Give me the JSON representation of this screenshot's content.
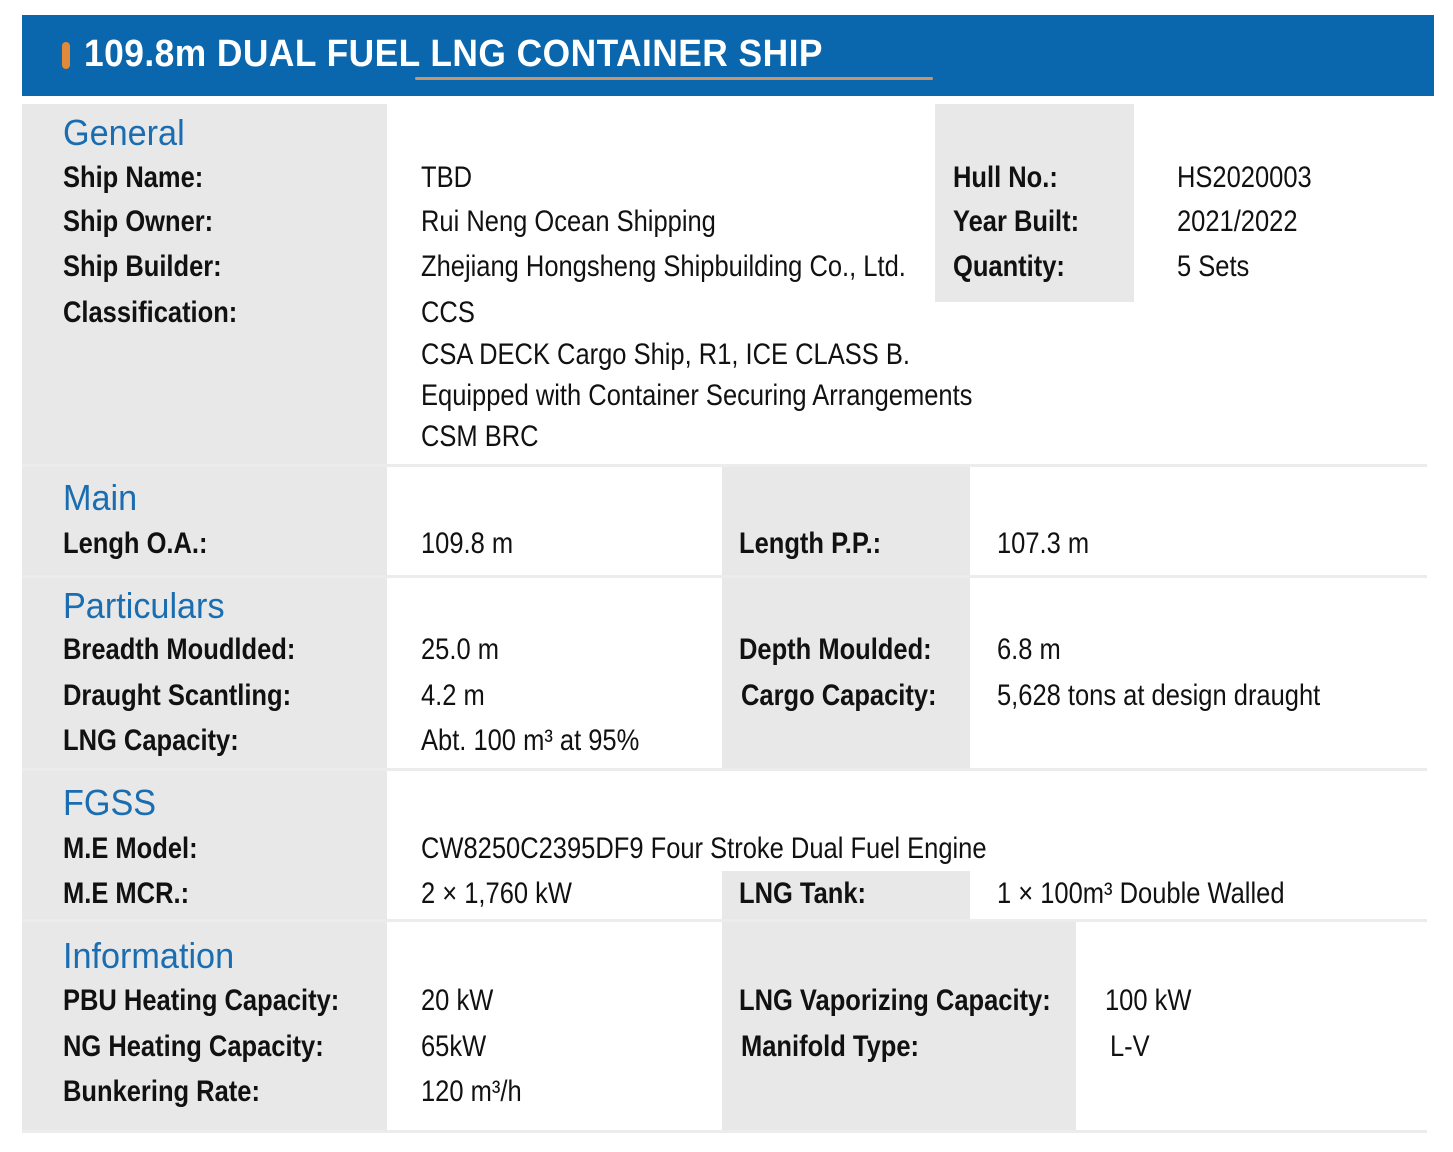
{
  "title": "109.8m DUAL FUEL LNG CONTAINER SHIP",
  "colors": {
    "header_bg": "#0a66ad",
    "accent": "#e08a3a",
    "section_heading": "#1a6db0",
    "label_bg": "#e8e8e8"
  },
  "general": {
    "heading": "General",
    "ship_name_label": "Ship Name:",
    "ship_name": "TBD",
    "ship_owner_label": "Ship Owner:",
    "ship_owner": "Rui Neng Ocean Shipping",
    "ship_builder_label": "Ship Builder:",
    "ship_builder": "Zhejiang Hongsheng Shipbuilding Co., Ltd.",
    "classification_label": "Classification:",
    "classification": [
      "CCS",
      "CSA DECK Cargo Ship, R1, ICE CLASS B.",
      "Equipped with Container Securing Arrangements",
      "CSM BRC"
    ],
    "hull_no_label": "Hull No.:",
    "hull_no": "HS2020003",
    "year_built_label": "Year Built:",
    "year_built": "2021/2022",
    "quantity_label": "Quantity:",
    "quantity": "5 Sets"
  },
  "main": {
    "heading": "Main",
    "loa_label": "Lengh O.A.:",
    "loa": "109.8 m",
    "lpp_label": "Length P.P.:",
    "lpp": "107.3 m"
  },
  "particulars": {
    "heading": "Particulars",
    "breadth_label": "Breadth Moudlded:",
    "breadth": "25.0 m",
    "draught_label": "Draught Scantling:",
    "draught": "4.2 m",
    "lng_cap_label": "LNG Capacity:",
    "lng_cap": "Abt. 100 m³ at 95%",
    "depth_label": "Depth Moulded:",
    "depth": "6.8 m",
    "cargo_label": "Cargo Capacity:",
    "cargo": "5,628 tons at design draught"
  },
  "fgss": {
    "heading": "FGSS",
    "me_model_label": "M.E Model:",
    "me_model": "CW8250C2395DF9 Four Stroke Dual Fuel Engine",
    "me_mcr_label": "M.E MCR.:",
    "me_mcr": "2 × 1,760 kW",
    "lng_tank_label": "LNG Tank:",
    "lng_tank": "1 × 100m³ Double Walled"
  },
  "information": {
    "heading": "Information",
    "pbu_label": "PBU Heating Capacity:",
    "pbu": "20 kW",
    "ng_label": "NG Heating Capacity:",
    "ng": "65kW",
    "bunkering_label": "Bunkering Rate:",
    "bunkering": "120 m³/h",
    "vapor_label": "LNG Vaporizing Capacity:",
    "vapor": "100 kW",
    "manifold_label": "Manifold Type:",
    "manifold": "L-V"
  }
}
